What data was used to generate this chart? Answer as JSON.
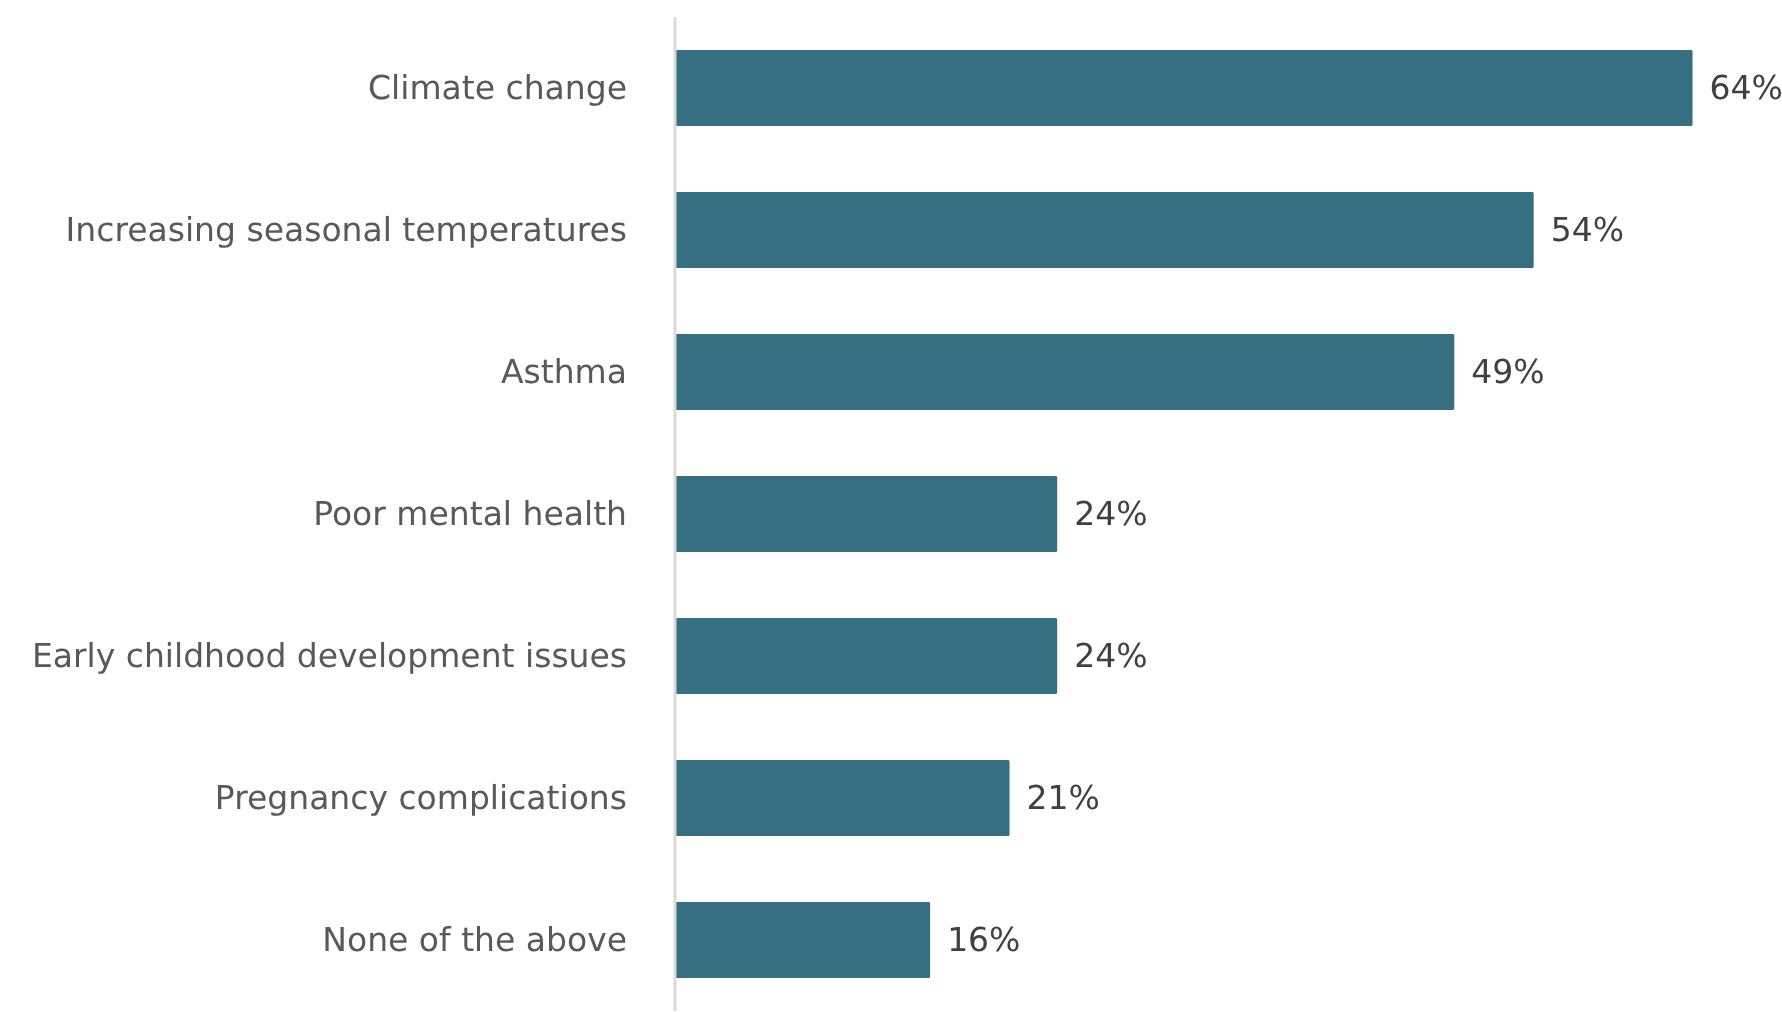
{
  "chart_data": {
    "type": "bar",
    "orientation": "horizontal",
    "categories": [
      "Climate change",
      "Increasing seasonal temperatures",
      "Asthma",
      "Poor mental health",
      "Early childhood development issues",
      "Pregnancy complications",
      "None of the above"
    ],
    "values": [
      64,
      54,
      49,
      24,
      24,
      21,
      16
    ],
    "color": "#366f82",
    "value_labels": [
      "64%",
      "54%",
      "49%",
      "24%",
      "24%",
      "21%",
      "16%"
    ],
    "tick_labels": "y"
  }
}
